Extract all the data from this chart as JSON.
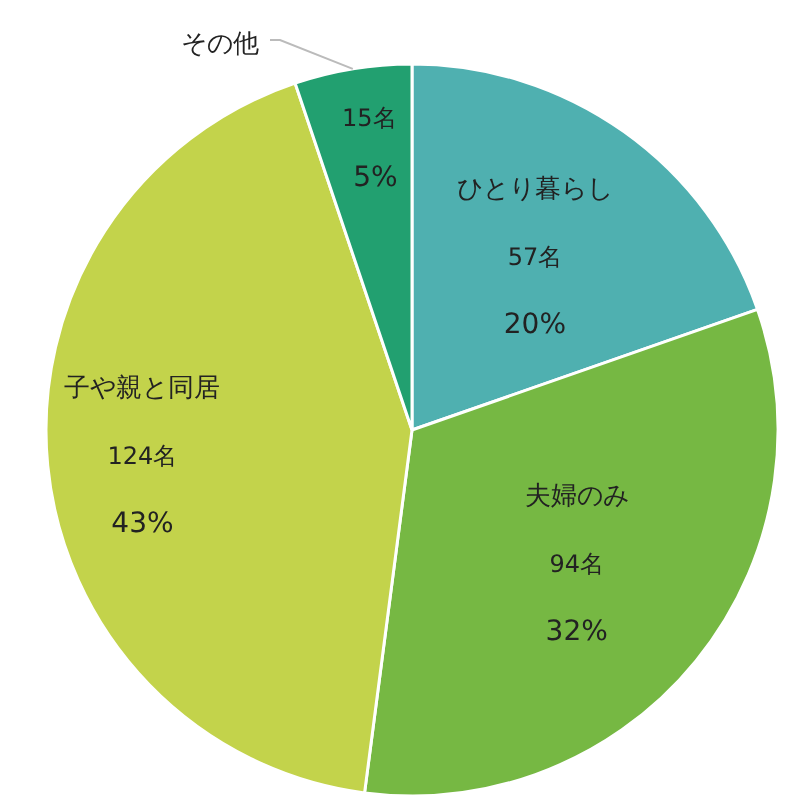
{
  "chart_data": {
    "type": "pie",
    "categories": [
      "ひとり暮らし",
      "夫婦のみ",
      "子や親と同居",
      "その他"
    ],
    "values": [
      57,
      94,
      124,
      15
    ],
    "value_labels": [
      "57名",
      "94名",
      "124名",
      "15名"
    ],
    "colors": [
      "#4fb0b0",
      "#76b843",
      "#c3d34b",
      "#22a070"
    ],
    "annotations": [
      {
        "text": "20%",
        "x": "ひとり暮らし"
      },
      {
        "text": "32%",
        "x": "夫婦のみ"
      },
      {
        "text": "43%",
        "x": "子や親と同居"
      },
      {
        "text": "5%",
        "x": "その他"
      }
    ]
  }
}
